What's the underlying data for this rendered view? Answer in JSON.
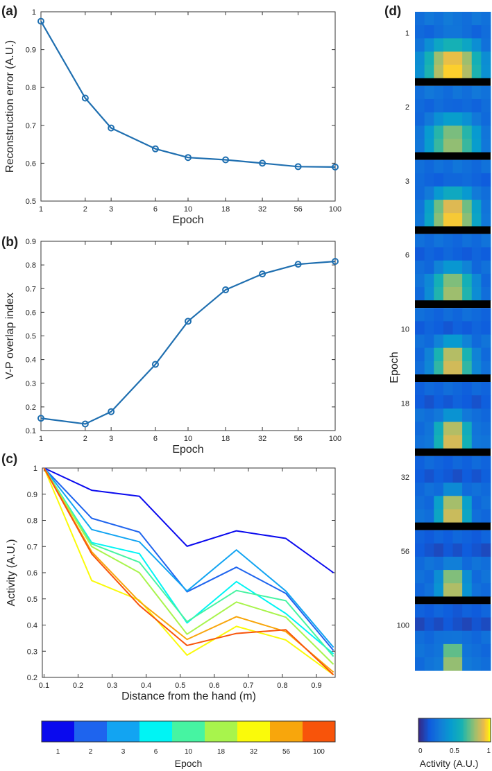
{
  "panels": {
    "a": "(a)",
    "b": "(b)",
    "c": "(c)",
    "d": "(d)"
  },
  "colors": {
    "series_blue": "#1f6fb0",
    "axis": "#333333",
    "epoch_palette": [
      "#0a0aee",
      "#1e64ee",
      "#12a4f2",
      "#00f4f4",
      "#46f4a2",
      "#a8f44c",
      "#fafa0a",
      "#f8a60c",
      "#f8540a"
    ]
  },
  "chart_data": [
    {
      "id": "a",
      "type": "line",
      "x_scale": "log",
      "x": [
        1,
        2,
        3,
        6,
        10,
        18,
        32,
        56,
        100
      ],
      "values": [
        0.975,
        0.772,
        0.693,
        0.638,
        0.615,
        0.609,
        0.6,
        0.591,
        0.59
      ],
      "xticks": [
        "1",
        "2",
        "3",
        "6",
        "10",
        "18",
        "32",
        "56",
        "100"
      ],
      "yticks": [
        "0.5",
        "0.6",
        "0.7",
        "0.8",
        "0.9",
        "1"
      ],
      "ylim": [
        0.5,
        1.0
      ],
      "xlabel": "Epoch",
      "ylabel": "Reconstruction error (A.U.)",
      "markers": "circle"
    },
    {
      "id": "b",
      "type": "line",
      "x_scale": "log",
      "x": [
        1,
        2,
        3,
        6,
        10,
        18,
        32,
        56,
        100
      ],
      "values": [
        0.152,
        0.128,
        0.18,
        0.38,
        0.562,
        0.695,
        0.762,
        0.803,
        0.815
      ],
      "xticks": [
        "1",
        "2",
        "3",
        "6",
        "10",
        "18",
        "32",
        "56",
        "100"
      ],
      "yticks": [
        "0.1",
        "0.2",
        "0.3",
        "0.4",
        "0.5",
        "0.6",
        "0.7",
        "0.8",
        "0.9"
      ],
      "ylim": [
        0.1,
        0.9
      ],
      "xlabel": "Epoch",
      "ylabel": "V-P overlap index",
      "markers": "circle"
    },
    {
      "id": "c",
      "type": "line",
      "x": [
        0.1,
        0.24,
        0.38,
        0.52,
        0.665,
        0.81,
        0.95
      ],
      "series": [
        {
          "name": "1",
          "values": [
            1.0,
            0.915,
            0.892,
            0.701,
            0.76,
            0.731,
            0.6
          ]
        },
        {
          "name": "2",
          "values": [
            1.0,
            0.808,
            0.755,
            0.527,
            0.621,
            0.521,
            0.303
          ]
        },
        {
          "name": "3",
          "values": [
            1.0,
            0.765,
            0.718,
            0.53,
            0.687,
            0.53,
            0.315
          ]
        },
        {
          "name": "6",
          "values": [
            1.0,
            0.715,
            0.673,
            0.408,
            0.566,
            0.444,
            0.29
          ]
        },
        {
          "name": "10",
          "values": [
            1.0,
            0.71,
            0.64,
            0.413,
            0.532,
            0.493,
            0.28
          ]
        },
        {
          "name": "18",
          "values": [
            1.0,
            0.7,
            0.6,
            0.365,
            0.488,
            0.43,
            0.25
          ]
        },
        {
          "name": "32",
          "values": [
            1.0,
            0.57,
            0.495,
            0.285,
            0.395,
            0.343,
            0.21
          ]
        },
        {
          "name": "56",
          "values": [
            1.0,
            0.68,
            0.49,
            0.345,
            0.432,
            0.375,
            0.22
          ]
        },
        {
          "name": "100",
          "values": [
            1.0,
            0.672,
            0.475,
            0.322,
            0.368,
            0.382,
            0.21
          ]
        }
      ],
      "xticks": [
        "0.1",
        "0.2",
        "0.3",
        "0.4",
        "0.5",
        "0.6",
        "0.7",
        "0.8",
        "0.9"
      ],
      "xtick_values": [
        0.1,
        0.2,
        0.3,
        0.4,
        0.5,
        0.6,
        0.7,
        0.8,
        0.9
      ],
      "yticks": [
        "0.2",
        "0.3",
        "0.4",
        "0.5",
        "0.6",
        "0.7",
        "0.8",
        "0.9",
        "1"
      ],
      "xlim": [
        0.095,
        0.955
      ],
      "ylim": [
        0.2,
        1.0
      ],
      "xlabel": "Distance from the hand (m)",
      "ylabel": "Activity (A.U.)",
      "colorbar": {
        "labels": [
          "1",
          "2",
          "3",
          "6",
          "10",
          "18",
          "32",
          "56",
          "100"
        ],
        "title": "Epoch"
      }
    },
    {
      "id": "d",
      "type": "heatmap",
      "rows": 5,
      "cols": 8,
      "epochs": [
        "1",
        "2",
        "3",
        "6",
        "10",
        "18",
        "32",
        "56",
        "100"
      ],
      "peak_activity": [
        1.0,
        0.82,
        1.0,
        0.85,
        0.95,
        0.97,
        0.97,
        0.95,
        0.95
      ],
      "ylabel": "Epoch",
      "colorbar": {
        "ticks": [
          "0",
          "0.5",
          "1"
        ],
        "label": "Activity (A.U.)"
      }
    }
  ]
}
